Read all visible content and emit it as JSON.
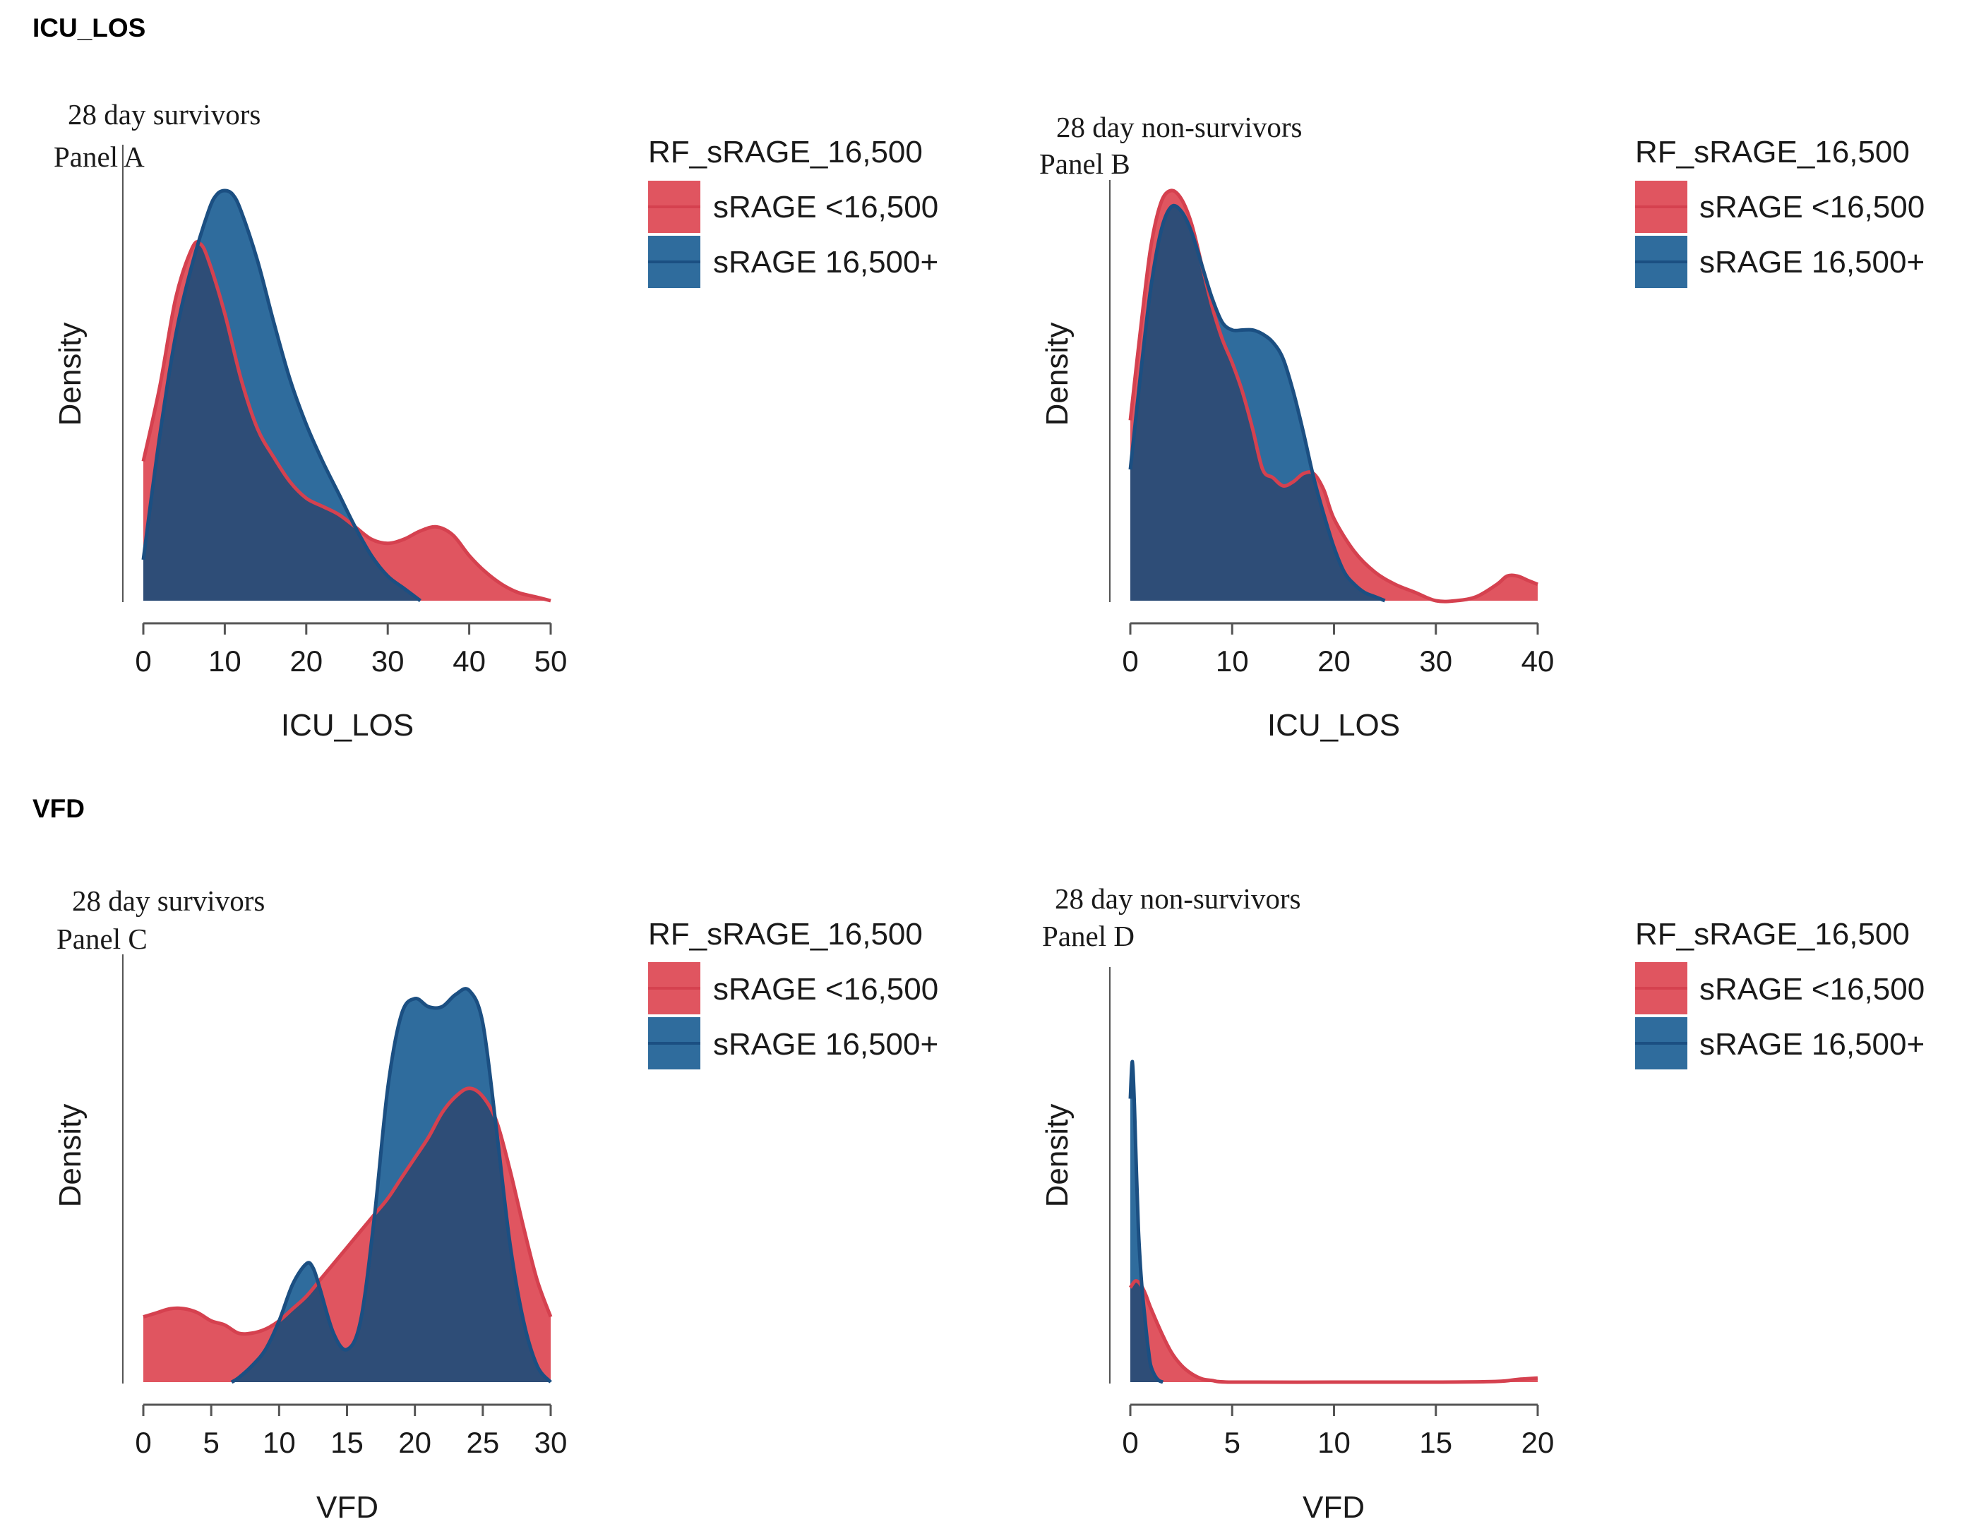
{
  "sections": [
    {
      "title": "ICU_LOS"
    },
    {
      "title": "VFD"
    }
  ],
  "colors": {
    "red_fill": "#E05560",
    "red_line": "#D5414F",
    "blue_fill": "#2F6C9D",
    "blue_line": "#1B4F82",
    "overlap_fill": "#2E4D77",
    "axis": "#555555"
  },
  "chart_data": [
    {
      "type": "area",
      "panel": "Panel A",
      "title": "28 day survivors",
      "xlabel": "ICU_LOS",
      "ylabel": "Density",
      "xlim": [
        0,
        50
      ],
      "ylim": [
        0,
        1
      ],
      "xticks": [
        "0",
        "10",
        "20",
        "30",
        "40",
        "50"
      ],
      "legend": {
        "title": "RF_sRAGE_16,500",
        "position": "right"
      },
      "series": [
        {
          "name": "sRAGE <16,500",
          "x": [
            0,
            2,
            4,
            6,
            7,
            8,
            10,
            12,
            14,
            16,
            18,
            20,
            22,
            24,
            26,
            28,
            30,
            32,
            34,
            36,
            38,
            40,
            42,
            44,
            46,
            48,
            50
          ],
          "y": [
            0.34,
            0.52,
            0.74,
            0.86,
            0.87,
            0.83,
            0.7,
            0.54,
            0.42,
            0.35,
            0.29,
            0.25,
            0.23,
            0.21,
            0.18,
            0.15,
            0.14,
            0.15,
            0.17,
            0.18,
            0.16,
            0.11,
            0.07,
            0.04,
            0.02,
            0.01,
            0.0
          ]
        },
        {
          "name": "sRAGE 16,500+",
          "x": [
            0,
            2,
            4,
            6,
            8,
            9,
            10,
            11,
            12,
            14,
            16,
            18,
            20,
            22,
            24,
            26,
            28,
            30,
            32,
            34
          ],
          "y": [
            0.1,
            0.4,
            0.65,
            0.82,
            0.95,
            0.99,
            1.0,
            0.99,
            0.95,
            0.83,
            0.68,
            0.54,
            0.43,
            0.34,
            0.26,
            0.18,
            0.11,
            0.06,
            0.03,
            0.0
          ]
        }
      ]
    },
    {
      "type": "area",
      "panel": "Panel B",
      "title": "28 day non-survivors",
      "xlabel": "ICU_LOS",
      "ylabel": "Density",
      "xlim": [
        0,
        40
      ],
      "ylim": [
        0,
        1
      ],
      "xticks": [
        "0",
        "10",
        "20",
        "30",
        "40"
      ],
      "legend": {
        "title": "RF_sRAGE_16,500",
        "position": "right"
      },
      "series": [
        {
          "name": "sRAGE <16,500",
          "x": [
            0,
            1,
            2,
            3,
            4,
            5,
            6,
            7,
            8,
            9,
            10,
            11,
            12,
            13,
            14,
            15,
            16,
            17,
            18,
            19,
            20,
            22,
            24,
            26,
            28,
            30,
            32,
            34,
            36,
            37,
            38,
            39,
            40
          ],
          "y": [
            0.44,
            0.66,
            0.86,
            0.97,
            1.0,
            0.98,
            0.92,
            0.82,
            0.72,
            0.64,
            0.58,
            0.51,
            0.42,
            0.32,
            0.3,
            0.28,
            0.29,
            0.31,
            0.31,
            0.27,
            0.2,
            0.12,
            0.07,
            0.04,
            0.02,
            0.0,
            0.0,
            0.01,
            0.04,
            0.06,
            0.06,
            0.05,
            0.04
          ]
        },
        {
          "name": "sRAGE 16,500+",
          "x": [
            0,
            1,
            2,
            3,
            4,
            5,
            6,
            7,
            8,
            9,
            10,
            11,
            12,
            13,
            14,
            15,
            16,
            17,
            18,
            19,
            20,
            21,
            22,
            23,
            24,
            25
          ],
          "y": [
            0.32,
            0.55,
            0.76,
            0.9,
            0.96,
            0.95,
            0.9,
            0.82,
            0.74,
            0.68,
            0.66,
            0.66,
            0.66,
            0.65,
            0.63,
            0.59,
            0.51,
            0.41,
            0.3,
            0.21,
            0.13,
            0.07,
            0.04,
            0.02,
            0.01,
            0.0
          ]
        }
      ]
    },
    {
      "type": "area",
      "panel": "Panel C",
      "title": "28 day survivors",
      "xlabel": "VFD",
      "ylabel": "Density",
      "xlim": [
        0,
        30
      ],
      "ylim": [
        0,
        1
      ],
      "xticks": [
        "0",
        "5",
        "10",
        "15",
        "20",
        "25",
        "30"
      ],
      "legend": {
        "title": "RF_sRAGE_16,500",
        "position": "right"
      },
      "series": [
        {
          "name": "sRAGE <16,500",
          "x": [
            0,
            1,
            2,
            3,
            4,
            5,
            6,
            7,
            8,
            9,
            10,
            11,
            12,
            13,
            14,
            15,
            16,
            17,
            18,
            19,
            20,
            21,
            22,
            23,
            24,
            25,
            26,
            27,
            28,
            29,
            30
          ],
          "y": [
            0.16,
            0.17,
            0.18,
            0.18,
            0.17,
            0.15,
            0.14,
            0.12,
            0.12,
            0.13,
            0.15,
            0.18,
            0.21,
            0.25,
            0.29,
            0.33,
            0.37,
            0.41,
            0.45,
            0.5,
            0.55,
            0.6,
            0.66,
            0.7,
            0.72,
            0.7,
            0.64,
            0.52,
            0.38,
            0.25,
            0.16
          ]
        },
        {
          "name": "sRAGE 16,500+",
          "x": [
            6.5,
            7,
            8,
            9,
            10,
            11,
            12,
            12.5,
            13,
            14,
            15,
            16,
            17,
            18,
            19,
            20,
            21,
            22,
            23,
            24,
            25,
            26,
            27,
            28,
            29,
            30
          ],
          "y": [
            0.0,
            0.01,
            0.04,
            0.08,
            0.15,
            0.24,
            0.29,
            0.28,
            0.23,
            0.12,
            0.08,
            0.15,
            0.4,
            0.72,
            0.9,
            0.94,
            0.92,
            0.92,
            0.95,
            0.96,
            0.88,
            0.62,
            0.34,
            0.15,
            0.04,
            0.0
          ]
        }
      ]
    },
    {
      "type": "area",
      "panel": "Panel D",
      "title": "28 day non-survivors",
      "xlabel": "VFD",
      "ylabel": "Density",
      "xlim": [
        0,
        20
      ],
      "ylim": [
        0,
        1
      ],
      "xticks": [
        "0",
        "5",
        "10",
        "15",
        "20"
      ],
      "legend": {
        "title": "RF_sRAGE_16,500",
        "position": "right"
      },
      "series": [
        {
          "name": "sRAGE <16,500",
          "x": [
            0,
            0.25,
            0.5,
            0.75,
            1,
            1.5,
            2,
            2.5,
            3,
            3.5,
            4,
            5,
            10,
            15,
            18,
            19,
            20
          ],
          "y": [
            0.28,
            0.3,
            0.29,
            0.26,
            0.22,
            0.15,
            0.09,
            0.05,
            0.025,
            0.01,
            0.005,
            0.0,
            0.0,
            0.0,
            0.002,
            0.008,
            0.012
          ]
        },
        {
          "name": "sRAGE 16,500+",
          "x": [
            0,
            0.1,
            0.2,
            0.3,
            0.4,
            0.5,
            0.6,
            0.7,
            0.8,
            0.9,
            1.0,
            1.2,
            1.4,
            1.6
          ],
          "y": [
            0.84,
            0.95,
            0.82,
            0.62,
            0.45,
            0.34,
            0.26,
            0.2,
            0.14,
            0.09,
            0.05,
            0.02,
            0.005,
            0.0
          ]
        }
      ]
    }
  ]
}
